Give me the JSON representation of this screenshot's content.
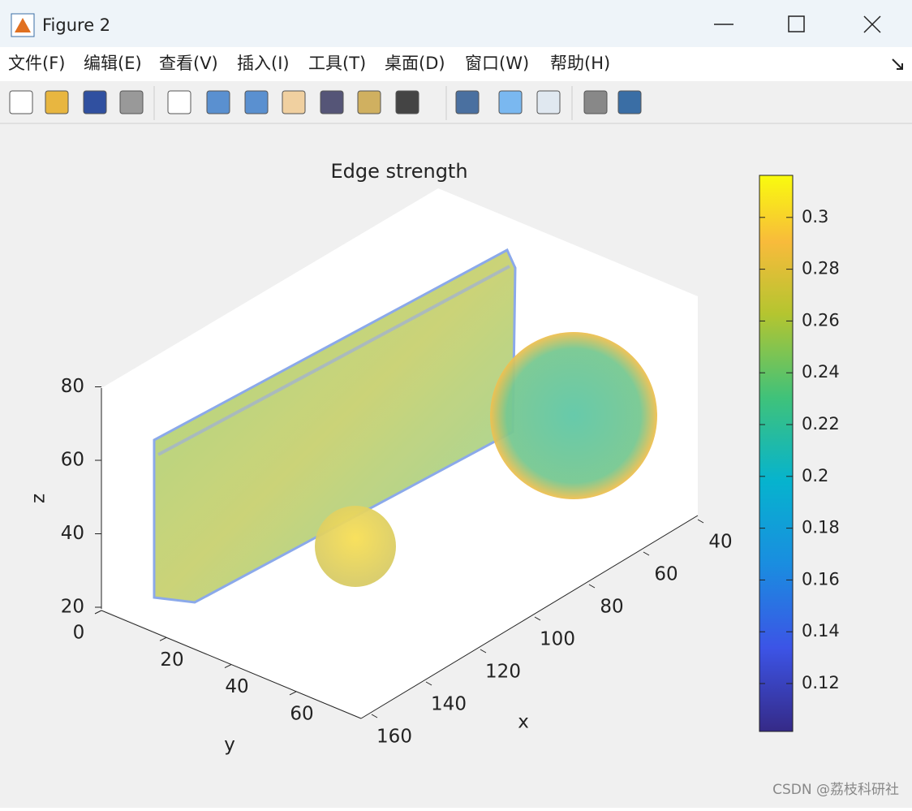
{
  "window": {
    "title": "Figure 2"
  },
  "menu": [
    "文件(F)",
    "编辑(E)",
    "查看(V)",
    "插入(I)",
    "工具(T)",
    "桌面(D)",
    "窗口(W)",
    "帮助(H)"
  ],
  "figure": {
    "title": "Edge strength",
    "axes": {
      "x_label": "x",
      "y_label": "y",
      "z_label": "z",
      "x_ticks": [
        40,
        60,
        80,
        100,
        120,
        140,
        160
      ],
      "y_ticks": [
        0,
        20,
        40,
        60
      ],
      "z_ticks": [
        20,
        40,
        60,
        80
      ]
    },
    "colorbar": {
      "ticks": [
        0.12,
        0.14,
        0.16,
        0.18,
        0.2,
        0.22,
        0.24,
        0.26,
        0.28,
        0.3
      ]
    }
  },
  "watermark": "CSDN @荔枝科研社"
}
